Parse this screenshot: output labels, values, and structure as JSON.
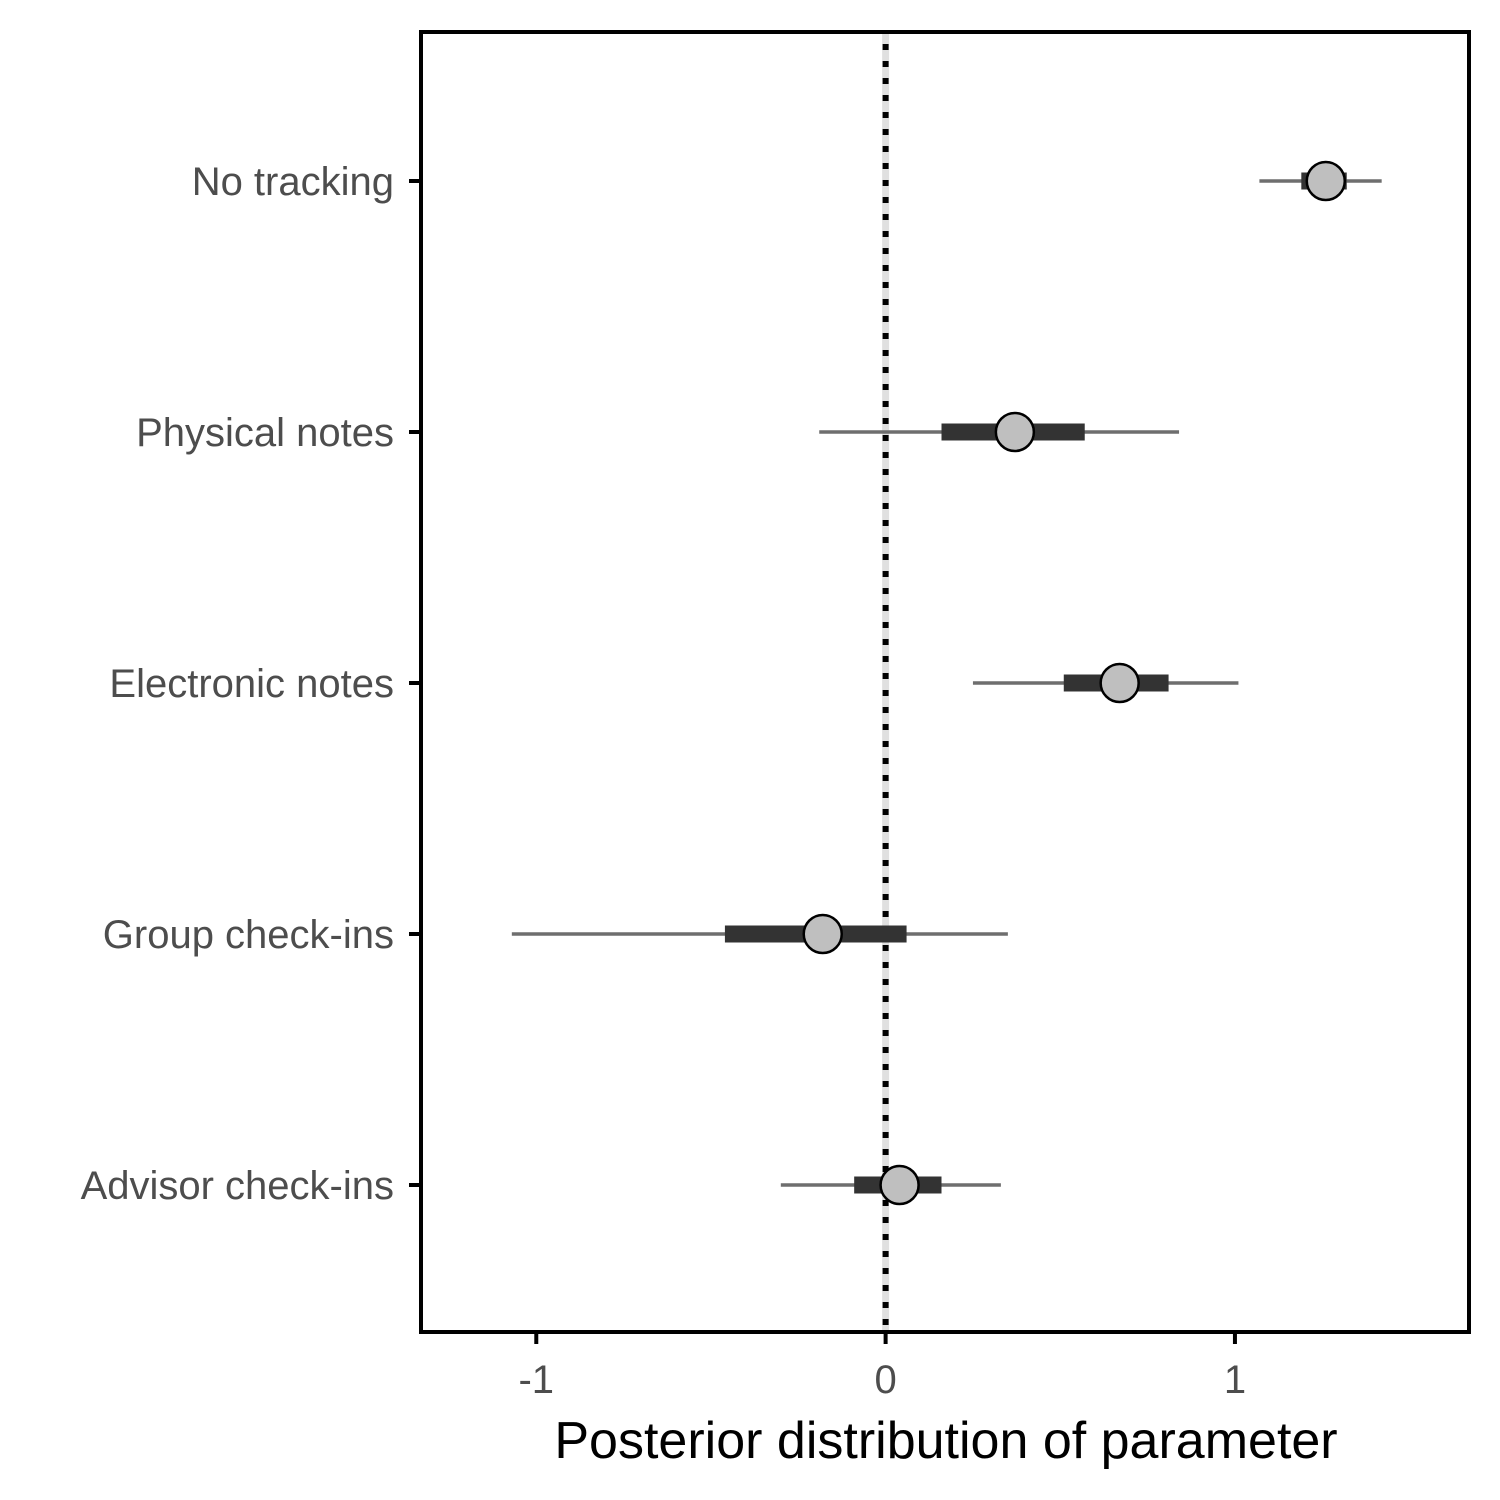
{
  "chart_data": {
    "type": "interval",
    "xlabel": "Posterior distribution of parameter",
    "ylabel": "",
    "xlim": [
      -1.33,
      1.67
    ],
    "x_ticks": [
      -1,
      0,
      1
    ],
    "x_tick_labels": [
      "-1",
      "0",
      "1"
    ],
    "reference_line": {
      "x": 0,
      "style": "dotted"
    },
    "grid": false,
    "categories": [
      "No tracking",
      "Physical notes",
      "Electronic notes",
      "Group check-ins",
      "Advisor check-ins"
    ],
    "series": [
      {
        "points": [
          {
            "category": "No tracking",
            "median": 1.26,
            "inner": [
              1.19,
              1.32
            ],
            "outer": [
              1.07,
              1.42
            ]
          },
          {
            "category": "Physical notes",
            "median": 0.37,
            "inner": [
              0.16,
              0.57
            ],
            "outer": [
              -0.19,
              0.84
            ]
          },
          {
            "category": "Electronic notes",
            "median": 0.67,
            "inner": [
              0.51,
              0.81
            ],
            "outer": [
              0.25,
              1.01
            ]
          },
          {
            "category": "Group check-ins",
            "median": -0.18,
            "inner": [
              -0.46,
              0.06
            ],
            "outer": [
              -1.07,
              0.35
            ]
          },
          {
            "category": "Advisor check-ins",
            "median": 0.04,
            "inner": [
              -0.09,
              0.16
            ],
            "outer": [
              -0.3,
              0.33
            ]
          }
        ]
      }
    ],
    "colors": {
      "point_fill": "#bfbfbf",
      "point_stroke": "#000000",
      "inner_interval": "#333333",
      "outer_interval": "#6e6e6e",
      "reference_line": "#000000",
      "reference_halo": "#e0e0e0"
    }
  }
}
